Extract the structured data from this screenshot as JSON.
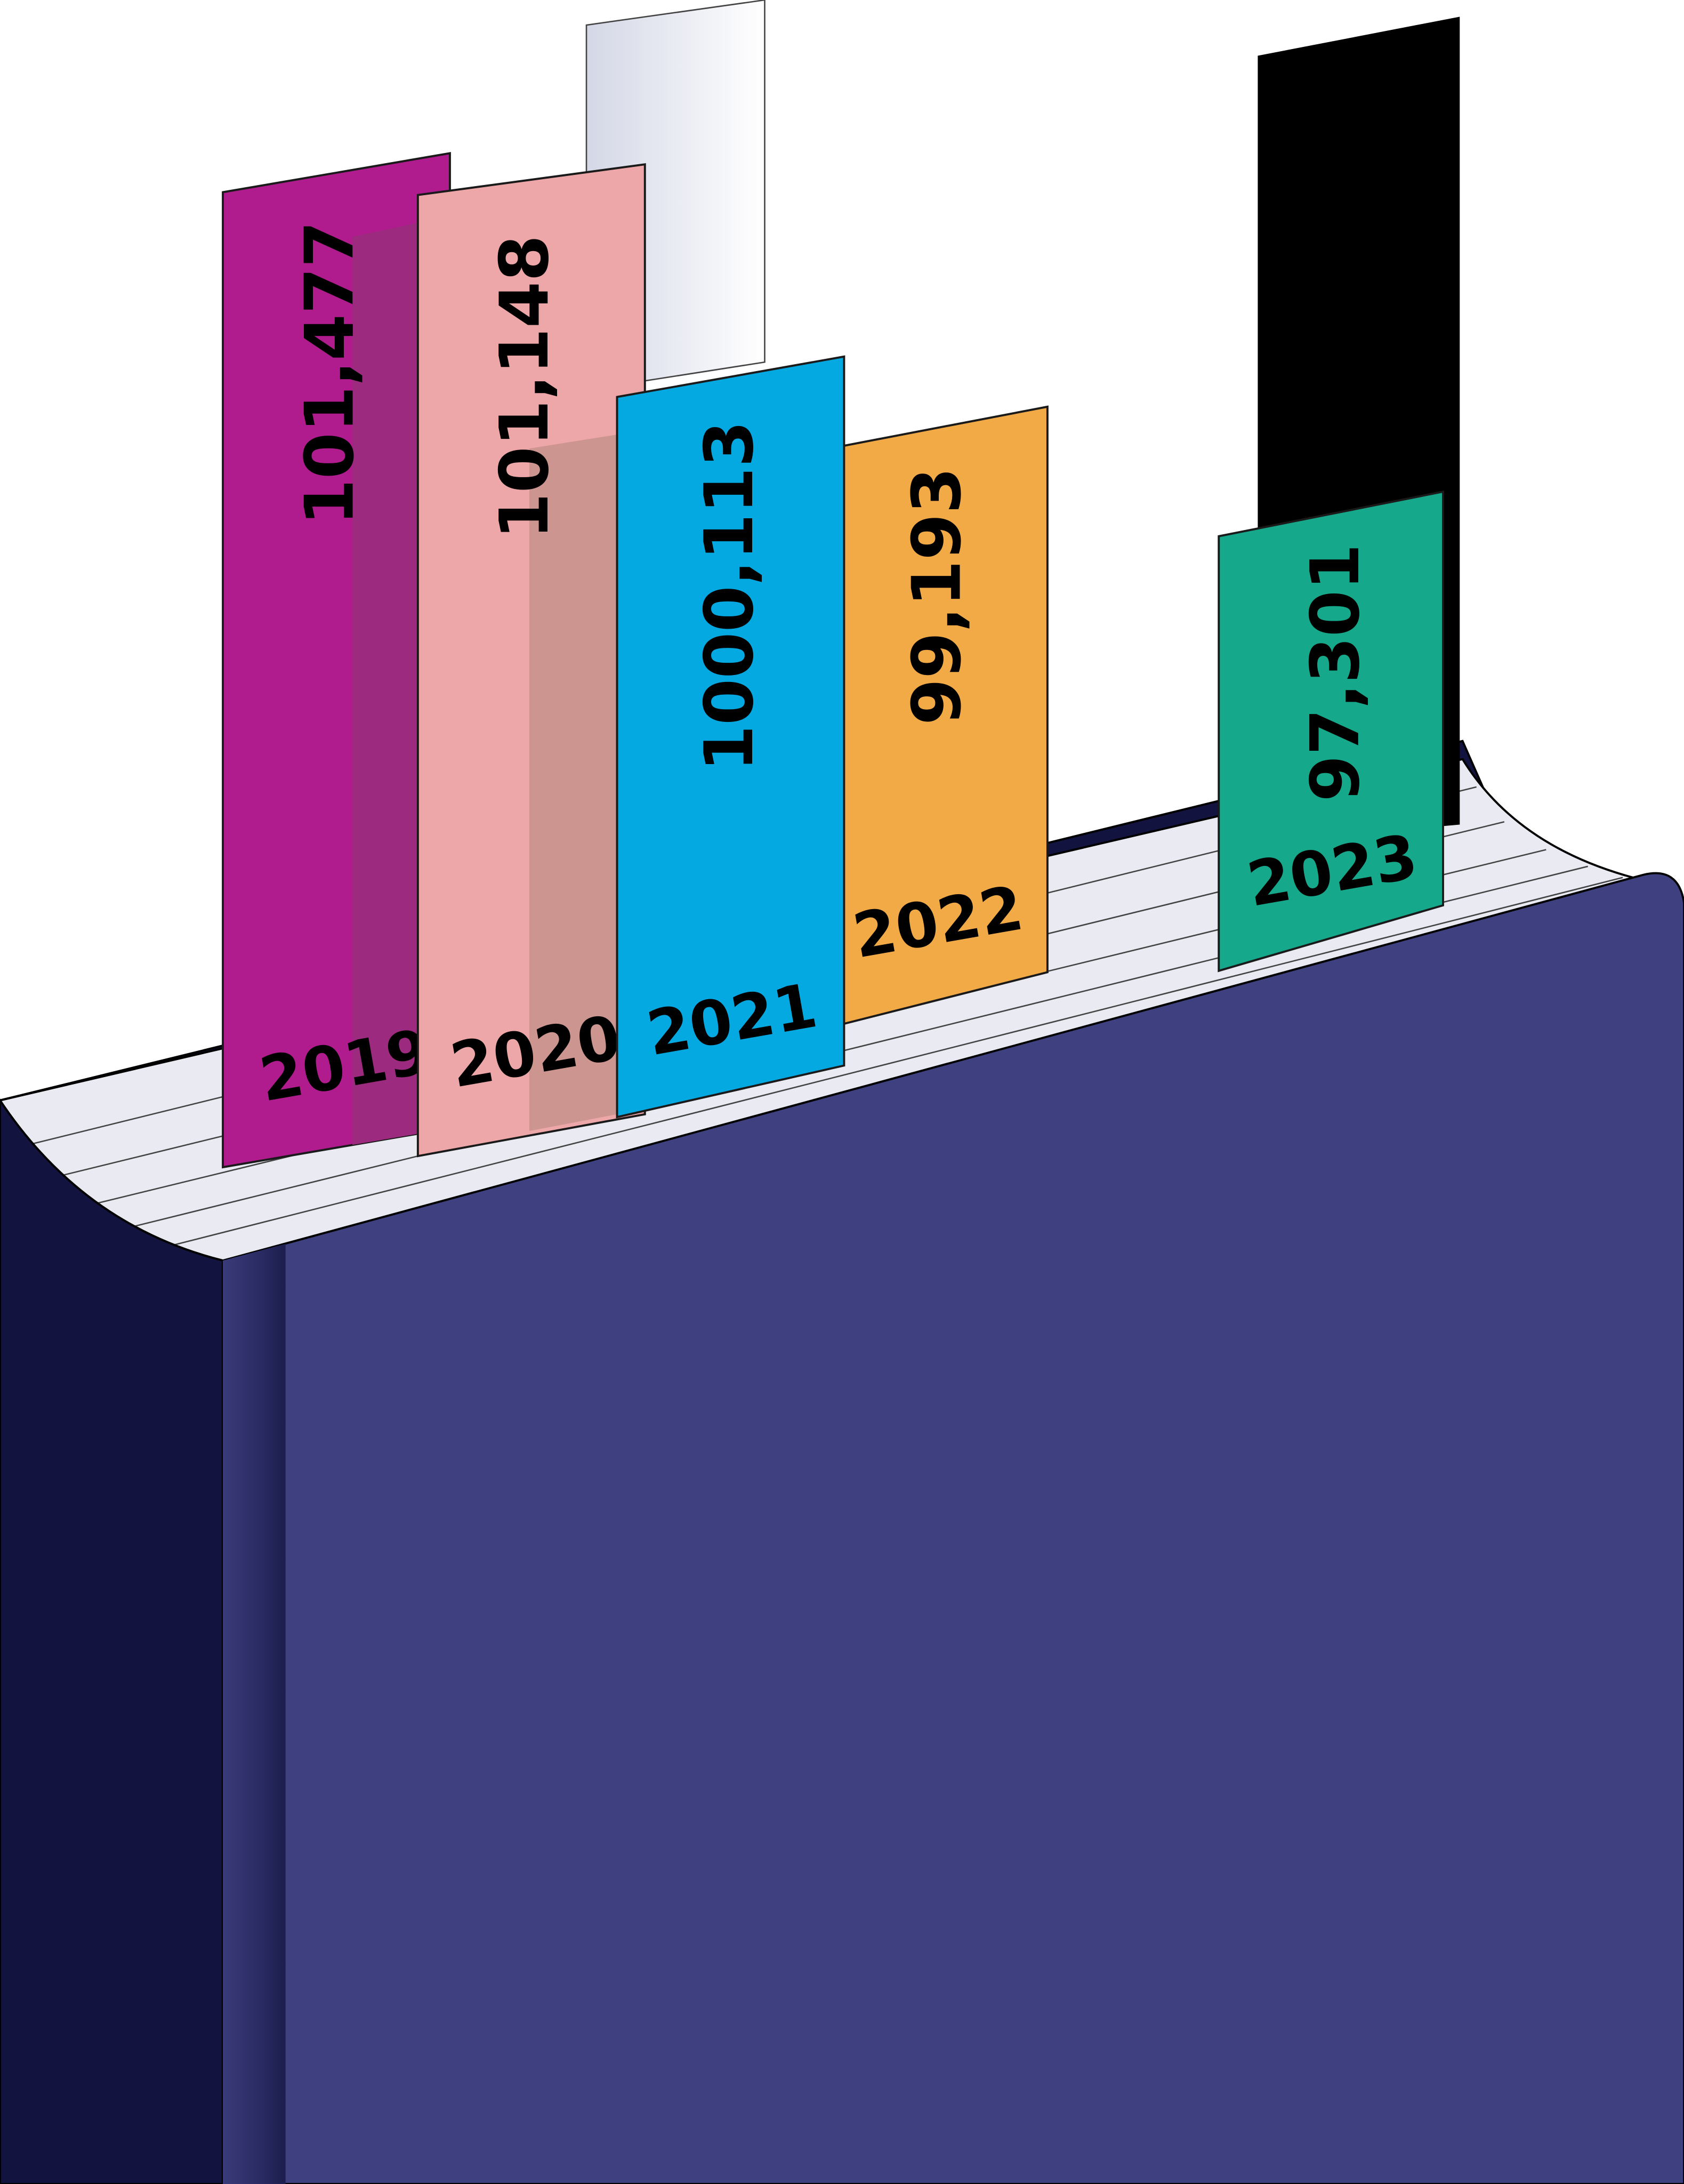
{
  "bookmarks": [
    {
      "year": "2019",
      "value": "101,477"
    },
    {
      "year": "2020",
      "value": "101,148"
    },
    {
      "year": "2021",
      "value": "1000,113"
    },
    {
      "year": "2022",
      "value": "99,193"
    },
    {
      "year": "2023",
      "value": "97,301"
    }
  ]
}
